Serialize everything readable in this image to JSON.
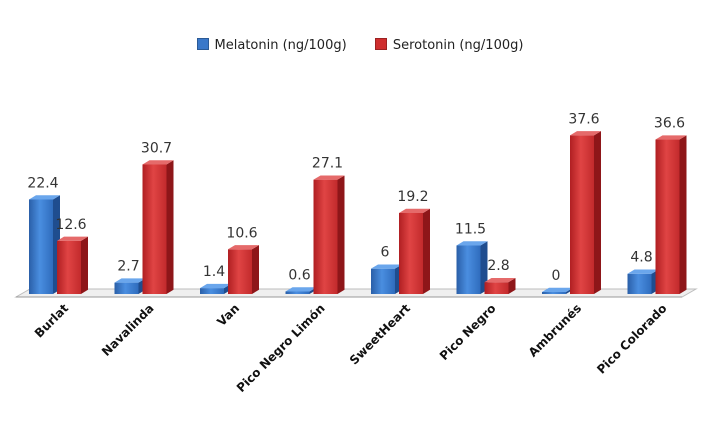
{
  "chart_data": {
    "type": "bar",
    "title": "",
    "xlabel": "",
    "ylabel": "",
    "ylim": [
      0,
      40
    ],
    "grid": false,
    "legend_position": "top-center",
    "categories": [
      "Burlat",
      "Navalinda",
      "Van",
      "Pico Negro Limón",
      "SweetHeart",
      "Pico Negro",
      "Ambrunés",
      "Pico Colorado"
    ],
    "series": [
      {
        "name": "Melatonin (ng/100g)",
        "color": "#3a78c9",
        "values": [
          22.4,
          2.7,
          1.4,
          0.6,
          6,
          11.5,
          0,
          4.8
        ],
        "labels": [
          "22.4",
          "2.7",
          "1.4",
          "0.6",
          "6",
          "11.5",
          "0",
          "4.8"
        ]
      },
      {
        "name": "Serotonin (ng/100g)",
        "color": "#cf2e2e",
        "values": [
          12.6,
          30.7,
          10.6,
          27.1,
          19.2,
          2.8,
          37.6,
          36.6
        ],
        "labels": [
          "12.6",
          "30.7",
          "10.6",
          "27.1",
          "19.2",
          "2.8",
          "37.6",
          "36.6"
        ]
      }
    ]
  }
}
